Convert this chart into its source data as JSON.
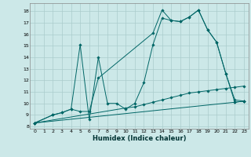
{
  "bg_color": "#cce8e8",
  "grid_color": "#aacccc",
  "line_color": "#006666",
  "xlabel": "Humidex (Indice chaleur)",
  "xlim": [
    -0.5,
    23.5
  ],
  "ylim": [
    7.8,
    18.7
  ],
  "xticks": [
    0,
    1,
    2,
    3,
    4,
    5,
    6,
    7,
    8,
    9,
    10,
    11,
    12,
    13,
    14,
    15,
    16,
    17,
    18,
    19,
    20,
    21,
    22,
    23
  ],
  "yticks": [
    8,
    9,
    10,
    11,
    12,
    13,
    14,
    15,
    16,
    17,
    18
  ],
  "lines": [
    {
      "x": [
        0,
        2,
        3,
        4,
        5,
        6,
        7,
        8,
        9,
        10,
        11,
        12,
        13,
        14,
        15,
        16,
        17,
        18,
        19,
        20,
        21,
        22,
        23
      ],
      "y": [
        8.3,
        9.0,
        9.2,
        9.5,
        15.1,
        8.6,
        14.0,
        10.0,
        10.0,
        9.5,
        10.0,
        11.8,
        15.1,
        17.4,
        17.2,
        17.1,
        17.5,
        18.1,
        16.4,
        15.3,
        12.6,
        10.1,
        10.2
      ]
    },
    {
      "x": [
        0,
        2,
        3,
        4,
        5,
        6,
        7,
        13,
        14,
        15,
        16,
        17,
        18,
        19,
        20,
        21,
        22,
        23
      ],
      "y": [
        8.3,
        9.0,
        9.2,
        9.5,
        9.3,
        9.3,
        12.2,
        16.1,
        18.1,
        17.2,
        17.1,
        17.5,
        18.1,
        16.4,
        15.3,
        12.6,
        10.3,
        10.2
      ]
    },
    {
      "x": [
        0,
        10,
        11,
        12,
        13,
        14,
        15,
        16,
        17,
        18,
        19,
        20,
        21,
        22,
        23
      ],
      "y": [
        8.3,
        9.6,
        9.7,
        9.9,
        10.1,
        10.3,
        10.5,
        10.7,
        10.9,
        11.0,
        11.1,
        11.2,
        11.3,
        11.4,
        11.5
      ]
    },
    {
      "x": [
        0,
        22,
        23
      ],
      "y": [
        8.3,
        10.1,
        10.2
      ]
    }
  ]
}
